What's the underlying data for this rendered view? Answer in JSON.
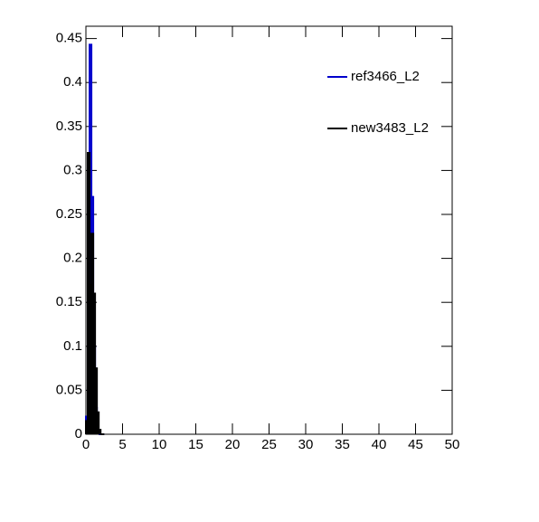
{
  "chart_data": {
    "type": "histogram",
    "bins": [
      0,
      0.25,
      0.5,
      0.75,
      1,
      1.25,
      1.5,
      1.75,
      2,
      2.25,
      2.5
    ],
    "series": [
      {
        "name": "ref3466_L2",
        "color": "#0000cc",
        "values": [
          0.02,
          0.22,
          0.443,
          0.27,
          0.1,
          0.03,
          0.005,
          0,
          0,
          0
        ]
      },
      {
        "name": "new3483_L2",
        "color": "#000000",
        "values": [
          0.015,
          0.32,
          0.17,
          0.228,
          0.16,
          0.075,
          0.025,
          0.005,
          0,
          0
        ]
      }
    ],
    "xlim": [
      0,
      50
    ],
    "xticks": [
      0,
      5,
      10,
      15,
      20,
      25,
      30,
      35,
      40,
      45,
      50
    ],
    "ylim": [
      0,
      0.464
    ],
    "yticks": [
      0,
      0.05,
      0.1,
      0.15,
      0.2,
      0.25,
      0.3,
      0.35,
      0.4,
      0.45
    ],
    "legend": "top-right"
  }
}
